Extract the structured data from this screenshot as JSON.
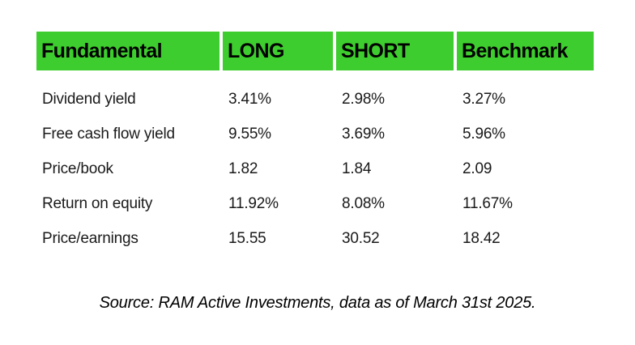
{
  "chart_data": {
    "type": "table",
    "columns": [
      "Fundamental",
      "LONG",
      "SHORT",
      "Benchmark"
    ],
    "rows": [
      [
        "Dividend yield",
        "3.41%",
        "2.98%",
        "3.27%"
      ],
      [
        "Free cash flow yield",
        "9.55%",
        "3.69%",
        "5.96%"
      ],
      [
        "Price/book",
        "1.82",
        "1.84",
        "2.09"
      ],
      [
        "Return on equity",
        "11.92%",
        "8.08%",
        "11.67%"
      ],
      [
        "Price/earnings",
        "15.55",
        "30.52",
        "18.42"
      ]
    ],
    "source_note": "Source: RAM Active Investments, data as of March 31st 2025."
  },
  "colors": {
    "header_green": "#3ecd2e",
    "text_black": "#000000",
    "text_dark": "#1a1a1a"
  }
}
